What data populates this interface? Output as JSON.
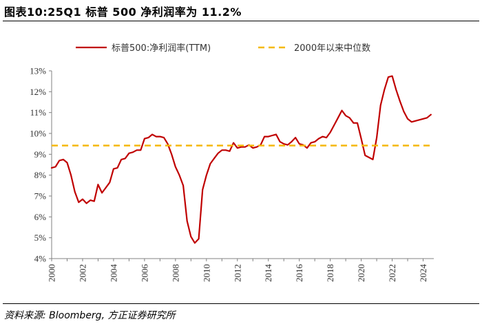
{
  "header": {
    "title": "图表10:25Q1 标普 500 净利润率为 11.2%"
  },
  "footer": {
    "source": "资料来源: Bloomberg, 方正证券研究所"
  },
  "chart_data": {
    "type": "line",
    "title": "图表10:25Q1 标普 500 净利润率为 11.2%",
    "xlabel": "",
    "ylabel": "",
    "xlim": [
      2000,
      2024.6
    ],
    "ylim": [
      4,
      13
    ],
    "y_tick_labels": [
      "4%",
      "5%",
      "6%",
      "7%",
      "8%",
      "9%",
      "10%",
      "11%",
      "12%",
      "13%"
    ],
    "x_tick_labels": [
      "2000",
      "2002",
      "2004",
      "2006",
      "2008",
      "2010",
      "2012",
      "2014",
      "2016",
      "2018",
      "2020",
      "2022",
      "2024"
    ],
    "grid": false,
    "legend_position": "top",
    "series": [
      {
        "name": "标普500:净利润率(TTM)",
        "color": "#c00000",
        "style": "solid",
        "x": [
          2000.0,
          2000.25,
          2000.5,
          2000.75,
          2001.0,
          2001.25,
          2001.5,
          2001.75,
          2002.0,
          2002.25,
          2002.5,
          2002.75,
          2003.0,
          2003.25,
          2003.5,
          2003.75,
          2004.0,
          2004.25,
          2004.5,
          2004.75,
          2005.0,
          2005.25,
          2005.5,
          2005.75,
          2006.0,
          2006.25,
          2006.5,
          2006.75,
          2007.0,
          2007.25,
          2007.5,
          2007.75,
          2008.0,
          2008.25,
          2008.5,
          2008.75,
          2009.0,
          2009.25,
          2009.5,
          2009.75,
          2010.0,
          2010.25,
          2010.5,
          2010.75,
          2011.0,
          2011.25,
          2011.5,
          2011.75,
          2012.0,
          2012.25,
          2012.5,
          2012.75,
          2013.0,
          2013.25,
          2013.5,
          2013.75,
          2014.0,
          2014.25,
          2014.5,
          2014.75,
          2015.0,
          2015.25,
          2015.5,
          2015.75,
          2016.0,
          2016.25,
          2016.5,
          2016.75,
          2017.0,
          2017.25,
          2017.5,
          2017.75,
          2018.0,
          2018.25,
          2018.5,
          2018.75,
          2019.0,
          2019.25,
          2019.5,
          2019.75,
          2020.0,
          2020.25,
          2020.5,
          2020.75,
          2021.0,
          2021.25,
          2021.5,
          2021.75,
          2022.0,
          2022.25,
          2022.5,
          2022.75,
          2023.0,
          2023.25,
          2023.5,
          2023.75,
          2024.0,
          2024.25,
          2024.5
        ],
        "values": [
          8.35,
          8.4,
          8.7,
          8.75,
          8.6,
          8.0,
          7.2,
          6.7,
          6.85,
          6.65,
          6.8,
          6.75,
          7.55,
          7.15,
          7.4,
          7.65,
          8.3,
          8.35,
          8.75,
          8.8,
          9.05,
          9.1,
          9.2,
          9.2,
          9.75,
          9.8,
          9.95,
          9.85,
          9.85,
          9.8,
          9.5,
          9.0,
          8.4,
          8.0,
          7.5,
          5.8,
          5.05,
          4.75,
          4.95,
          7.3,
          8.0,
          8.55,
          8.8,
          9.05,
          9.2,
          9.2,
          9.15,
          9.55,
          9.3,
          9.35,
          9.35,
          9.45,
          9.3,
          9.35,
          9.45,
          9.85,
          9.85,
          9.9,
          9.95,
          9.6,
          9.5,
          9.45,
          9.6,
          9.8,
          9.5,
          9.45,
          9.3,
          9.55,
          9.6,
          9.75,
          9.85,
          9.8,
          10.05,
          10.4,
          10.75,
          11.1,
          10.85,
          10.75,
          10.5,
          10.5,
          9.75,
          8.95,
          8.85,
          8.75,
          9.8,
          11.35,
          12.1,
          12.7,
          12.75,
          12.1,
          11.55,
          11.05,
          10.7,
          10.55,
          10.6,
          10.65,
          10.7,
          10.75,
          10.9
        ]
      },
      {
        "name": "2000年以来中位数",
        "color": "#f5b800",
        "style": "dashed",
        "x": [
          2000.0,
          2024.6
        ],
        "values": [
          9.42,
          9.42
        ]
      }
    ]
  }
}
